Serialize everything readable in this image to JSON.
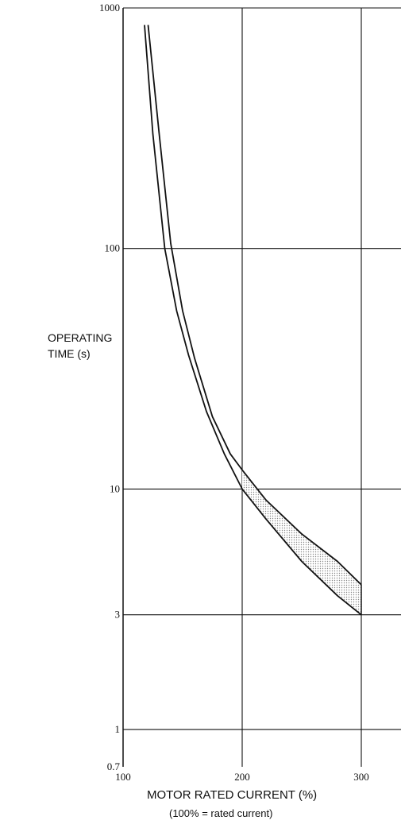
{
  "chart_data": {
    "type": "line",
    "title": "",
    "ylabel": [
      "OPERATING",
      "TIME (s)"
    ],
    "xlabel": "MOTOR RATED CURRENT (%)",
    "xlabel_sub": "(100% = rated current)",
    "x_ticks": [
      {
        "value": 100,
        "label": "100"
      },
      {
        "value": 200,
        "label": "200"
      },
      {
        "value": 300,
        "label": "300"
      }
    ],
    "y_ticks": [
      {
        "value": 1000,
        "label": "1000"
      },
      {
        "value": 100,
        "label": "100"
      },
      {
        "value": 10,
        "label": "10"
      },
      {
        "value": 3,
        "label": "3"
      },
      {
        "value": 1,
        "label": "1"
      },
      {
        "value": 0.7,
        "label": "0.7"
      }
    ],
    "xlim": [
      100,
      330
    ],
    "ylim": [
      0.7,
      1000
    ],
    "yscale": "log",
    "grid": true,
    "band_fill": "shaded region between curves",
    "series": [
      {
        "points": [
          [
            121,
            850
          ],
          [
            130,
            310
          ],
          [
            140,
            105
          ],
          [
            150,
            55
          ],
          [
            160,
            35
          ],
          [
            175,
            20
          ],
          [
            190,
            14
          ],
          [
            200,
            12
          ],
          [
            220,
            9
          ],
          [
            250,
            6.5
          ],
          [
            280,
            5
          ],
          [
            300,
            4
          ]
        ]
      },
      {
        "points": [
          [
            118,
            850
          ],
          [
            125,
            300
          ],
          [
            135,
            100
          ],
          [
            145,
            55
          ],
          [
            155,
            36
          ],
          [
            170,
            21
          ],
          [
            185,
            14
          ],
          [
            200,
            10
          ],
          [
            220,
            7.5
          ],
          [
            250,
            5
          ],
          [
            280,
            3.6
          ],
          [
            300,
            3
          ]
        ]
      }
    ]
  }
}
